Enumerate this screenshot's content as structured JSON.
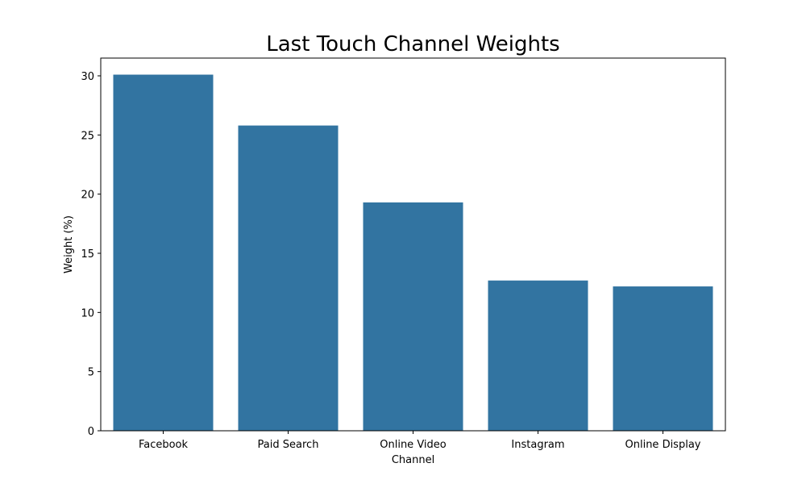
{
  "chart_data": {
    "type": "bar",
    "title": "Last Touch Channel Weights",
    "xlabel": "Channel",
    "ylabel": "Weight (%)",
    "categories": [
      "Facebook",
      "Paid Search",
      "Online Video",
      "Instagram",
      "Online Display"
    ],
    "values": [
      30.1,
      25.8,
      19.3,
      12.7,
      12.2
    ],
    "ylim": [
      0,
      31.5
    ],
    "yticks": [
      0,
      5,
      10,
      15,
      20,
      25,
      30
    ],
    "grid": false,
    "legend": "none",
    "bar_color": "#3274a1"
  }
}
